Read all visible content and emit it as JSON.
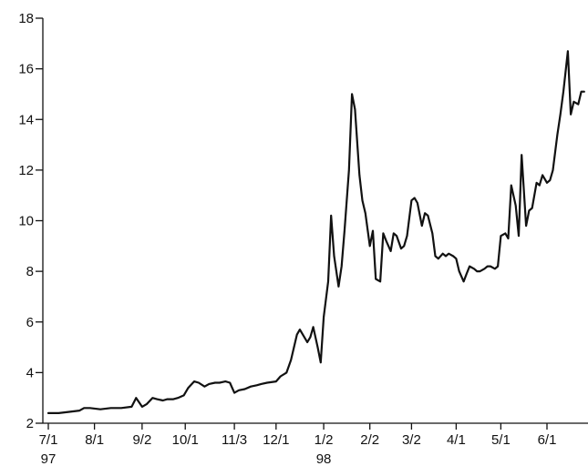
{
  "chart_data": {
    "type": "line",
    "title": "",
    "xlabel": "",
    "ylabel": "",
    "ylim": [
      2,
      18
    ],
    "yticks": [
      2,
      4,
      6,
      8,
      10,
      12,
      14,
      16,
      18
    ],
    "xticks": [
      {
        "date": "1997-07-01",
        "label": "7/1",
        "sublabel": "97"
      },
      {
        "date": "1997-08-01",
        "label": "8/1",
        "sublabel": ""
      },
      {
        "date": "1997-09-02",
        "label": "9/2",
        "sublabel": ""
      },
      {
        "date": "1997-10-01",
        "label": "10/1",
        "sublabel": ""
      },
      {
        "date": "1997-11-03",
        "label": "11/3",
        "sublabel": ""
      },
      {
        "date": "1997-12-01",
        "label": "12/1",
        "sublabel": ""
      },
      {
        "date": "1998-01-02",
        "label": "1/2",
        "sublabel": "98"
      },
      {
        "date": "1998-02-02",
        "label": "2/2",
        "sublabel": ""
      },
      {
        "date": "1998-03-02",
        "label": "3/2",
        "sublabel": ""
      },
      {
        "date": "1998-04-01",
        "label": "4/1",
        "sublabel": ""
      },
      {
        "date": "1998-05-01",
        "label": "5/1",
        "sublabel": ""
      },
      {
        "date": "1998-06-01",
        "label": "6/1",
        "sublabel": ""
      }
    ],
    "grid": false,
    "legend": "none",
    "line_color": "#111111",
    "series": [
      {
        "x": [
          "1997-07-01",
          "1997-07-08",
          "1997-07-15",
          "1997-07-22",
          "1997-07-25",
          "1997-07-29",
          "1997-08-05",
          "1997-08-12",
          "1997-08-19",
          "1997-08-26",
          "1997-08-29",
          "1997-09-02",
          "1997-09-05",
          "1997-09-09",
          "1997-09-12",
          "1997-09-16",
          "1997-09-19",
          "1997-09-23",
          "1997-09-26",
          "1997-09-30",
          "1997-10-03",
          "1997-10-07",
          "1997-10-10",
          "1997-10-14",
          "1997-10-17",
          "1997-10-21",
          "1997-10-24",
          "1997-10-28",
          "1997-10-31",
          "1997-11-03",
          "1997-11-06",
          "1997-11-10",
          "1997-11-14",
          "1997-11-18",
          "1997-11-21",
          "1997-11-25",
          "1997-12-01",
          "1997-12-04",
          "1997-12-08",
          "1997-12-11",
          "1997-12-15",
          "1997-12-17",
          "1997-12-19",
          "1997-12-22",
          "1997-12-24",
          "1997-12-26",
          "1997-12-29",
          "1997-12-31",
          "1998-01-02",
          "1998-01-05",
          "1998-01-07",
          "1998-01-09",
          "1998-01-12",
          "1998-01-14",
          "1998-01-16",
          "1998-01-19",
          "1998-01-21",
          "1998-01-23",
          "1998-01-26",
          "1998-01-28",
          "1998-01-30",
          "1998-02-02",
          "1998-02-04",
          "1998-02-06",
          "1998-02-09",
          "1998-02-11",
          "1998-02-13",
          "1998-02-16",
          "1998-02-18",
          "1998-02-20",
          "1998-02-23",
          "1998-02-25",
          "1998-02-27",
          "1998-03-02",
          "1998-03-04",
          "1998-03-06",
          "1998-03-09",
          "1998-03-11",
          "1998-03-13",
          "1998-03-16",
          "1998-03-18",
          "1998-03-20",
          "1998-03-23",
          "1998-03-25",
          "1998-03-27",
          "1998-03-30",
          "1998-04-01",
          "1998-04-03",
          "1998-04-06",
          "1998-04-08",
          "1998-04-10",
          "1998-04-13",
          "1998-04-15",
          "1998-04-17",
          "1998-04-20",
          "1998-04-22",
          "1998-04-24",
          "1998-04-27",
          "1998-04-29",
          "1998-05-01",
          "1998-05-04",
          "1998-05-06",
          "1998-05-08",
          "1998-05-11",
          "1998-05-13",
          "1998-05-15",
          "1998-05-18",
          "1998-05-20",
          "1998-05-22",
          "1998-05-25",
          "1998-05-27",
          "1998-05-29",
          "1998-06-01",
          "1998-06-03",
          "1998-06-05",
          "1998-06-08",
          "1998-06-10",
          "1998-06-12",
          "1998-06-15",
          "1998-06-17",
          "1998-06-19",
          "1998-06-22",
          "1998-06-24",
          "1998-06-26"
        ],
        "y": [
          2.4,
          2.4,
          2.45,
          2.5,
          2.6,
          2.6,
          2.55,
          2.6,
          2.6,
          2.65,
          3.0,
          2.65,
          2.75,
          3.0,
          2.95,
          2.9,
          2.95,
          2.95,
          3.0,
          3.1,
          3.4,
          3.65,
          3.6,
          3.45,
          3.55,
          3.6,
          3.6,
          3.65,
          3.6,
          3.2,
          3.3,
          3.35,
          3.45,
          3.5,
          3.55,
          3.6,
          3.65,
          3.85,
          4.0,
          4.5,
          5.5,
          5.7,
          5.5,
          5.2,
          5.4,
          5.8,
          5.0,
          4.4,
          6.2,
          7.6,
          10.2,
          8.6,
          7.4,
          8.2,
          9.6,
          12.0,
          15.0,
          14.4,
          11.8,
          10.8,
          10.3,
          9.0,
          9.6,
          7.7,
          7.6,
          9.5,
          9.2,
          8.8,
          9.5,
          9.4,
          8.9,
          9.0,
          9.4,
          10.8,
          10.9,
          10.7,
          9.8,
          10.3,
          10.2,
          9.5,
          8.6,
          8.5,
          8.7,
          8.6,
          8.7,
          8.6,
          8.5,
          8.0,
          7.6,
          7.9,
          8.2,
          8.1,
          8.0,
          8.0,
          8.1,
          8.2,
          8.2,
          8.1,
          8.2,
          9.4,
          9.5,
          9.3,
          11.4,
          10.6,
          9.4,
          12.6,
          9.8,
          10.4,
          10.5,
          11.5,
          11.4,
          11.8,
          11.5,
          11.6,
          12.0,
          13.4,
          14.2,
          15.1,
          16.7,
          14.2,
          14.7,
          14.6,
          15.1,
          15.1
        ]
      }
    ]
  }
}
